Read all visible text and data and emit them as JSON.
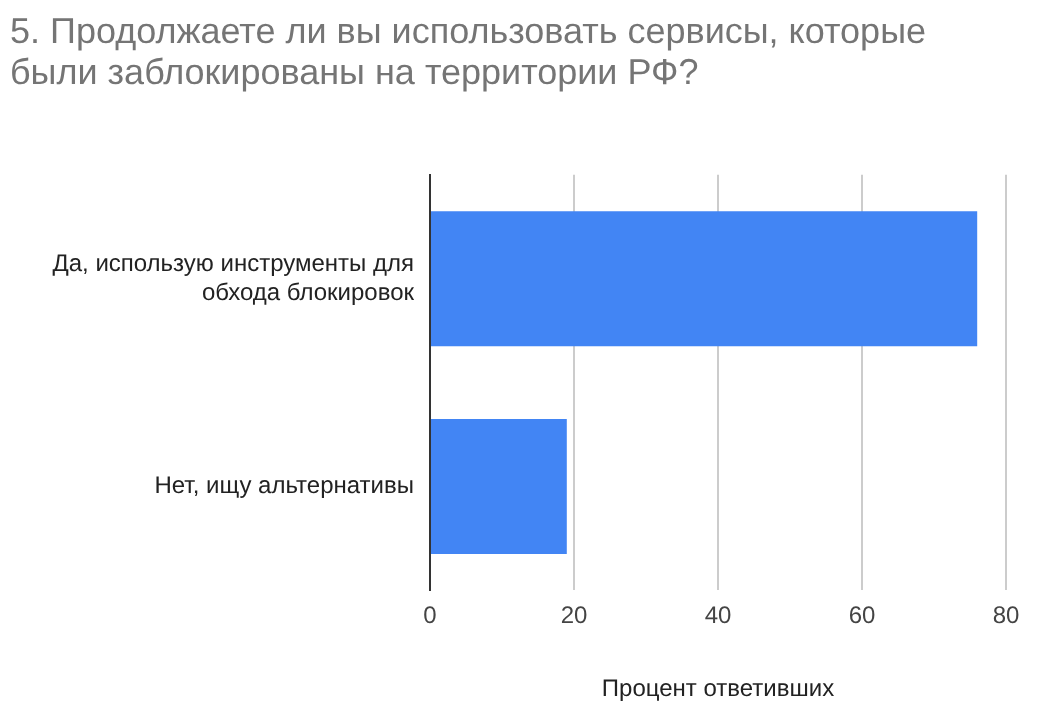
{
  "chart_data": {
    "type": "bar",
    "orientation": "horizontal",
    "title": "5. Продолжаете ли вы использовать сервисы, которые были заблокированы на территории РФ?",
    "xlabel": "Процент ответивших",
    "categories": [
      "Да, использую инструменты для обхода блокировок",
      "Нет, ищу альтернативы"
    ],
    "values": [
      76,
      19
    ],
    "color": "#4285f4",
    "xlim": [
      0,
      80
    ],
    "xticks": [
      0,
      20,
      40,
      60,
      80
    ],
    "grid": "x",
    "legend": false
  }
}
